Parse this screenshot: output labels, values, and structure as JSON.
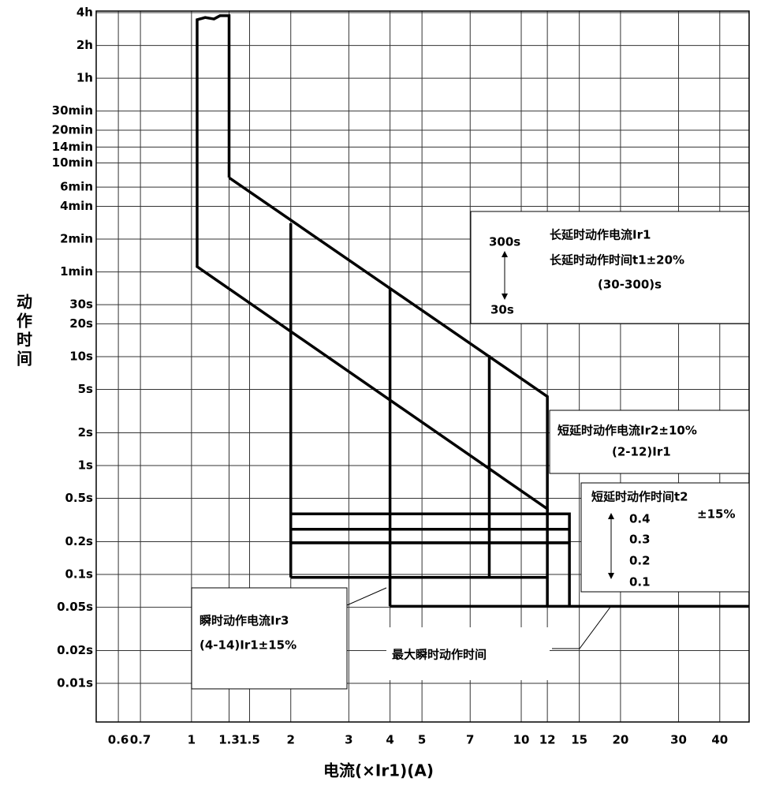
{
  "chart_data": {
    "type": "line",
    "x_label": "电流(×Ir1)(A)",
    "y_label": "动作时间",
    "log_x": true,
    "log_y": true,
    "grid": true,
    "xlim": [
      0.514,
      49.1
    ],
    "ylim": [
      0.00442,
      14900
    ],
    "xticks": [
      0.6,
      0.7,
      1,
      1.3,
      1.5,
      2,
      3,
      4,
      5,
      7,
      10,
      12,
      15,
      20,
      30,
      40
    ],
    "yticks": [
      {
        "value": 14400,
        "label": "4h"
      },
      {
        "value": 7200,
        "label": "2h"
      },
      {
        "value": 3600,
        "label": "1h"
      },
      {
        "value": 1800,
        "label": "30min"
      },
      {
        "value": 1200,
        "label": "20min"
      },
      {
        "value": 840,
        "label": "14min"
      },
      {
        "value": 600,
        "label": "10min"
      },
      {
        "value": 360,
        "label": "6min"
      },
      {
        "value": 240,
        "label": "4min"
      },
      {
        "value": 120,
        "label": "2min"
      },
      {
        "value": 60,
        "label": "1min"
      },
      {
        "value": 30,
        "label": "30s"
      },
      {
        "value": 20,
        "label": "20s"
      },
      {
        "value": 10,
        "label": "10s"
      },
      {
        "value": 5,
        "label": "5s"
      },
      {
        "value": 2,
        "label": "2s"
      },
      {
        "value": 1,
        "label": "1s"
      },
      {
        "value": 0.5,
        "label": "0.5s"
      },
      {
        "value": 0.2,
        "label": "0.2s"
      },
      {
        "value": 0.1,
        "label": "0.1s"
      },
      {
        "value": 0.05,
        "label": "0.05s"
      },
      {
        "value": 0.02,
        "label": "0.02s"
      },
      {
        "value": 0.01,
        "label": "0.01s"
      }
    ],
    "series": [
      {
        "color": "#000000",
        "x": [
          1.3,
          1.3,
          1.22,
          1.17,
          1.1,
          1.04,
          1.04,
          12,
          12,
          1.3
        ],
        "values": [
          440,
          13500,
          13500,
          12600,
          13000,
          12400,
          67,
          0.4,
          4.3,
          440
        ]
      },
      {
        "color": "#000000",
        "x": [
          2,
          2
        ],
        "values": [
          168,
          0.094
        ]
      },
      {
        "color": "#000000",
        "x": [
          4,
          4
        ],
        "values": [
          43,
          0.051
        ]
      },
      {
        "color": "#000000",
        "x": [
          8,
          8
        ],
        "values": [
          10.3,
          0.094
        ]
      },
      {
        "color": "#000000",
        "x": [
          12,
          12
        ],
        "values": [
          0.4,
          0.051
        ]
      },
      {
        "color": "#000000",
        "x": [
          2,
          14,
          14
        ],
        "values": [
          0.36,
          0.36,
          0.051
        ]
      },
      {
        "color": "#000000",
        "x": [
          2,
          14
        ],
        "values": [
          0.26,
          0.26
        ]
      },
      {
        "color": "#000000",
        "x": [
          2,
          14
        ],
        "values": [
          0.195,
          0.195
        ]
      },
      {
        "color": "#000000",
        "x": [
          2,
          12
        ],
        "values": [
          0.094,
          0.094
        ]
      },
      {
        "color": "#000000",
        "x": [
          4,
          49
        ],
        "values": [
          0.051,
          0.051
        ]
      }
    ],
    "annotations": [
      "300s",
      "30s",
      "长延时动作电流Ir1",
      "长延时动作时间t1±20%",
      "(30-300)s",
      "短延时动作电流Ir2±10%",
      "(2-12)Ir1",
      "短延时动作时间t2",
      "±15%",
      "0.4",
      "0.3",
      "0.2",
      "0.1",
      "瞬时动作电流Ir3",
      "(4-14)Ir1±15%",
      "最大瞬时动作时间"
    ]
  }
}
